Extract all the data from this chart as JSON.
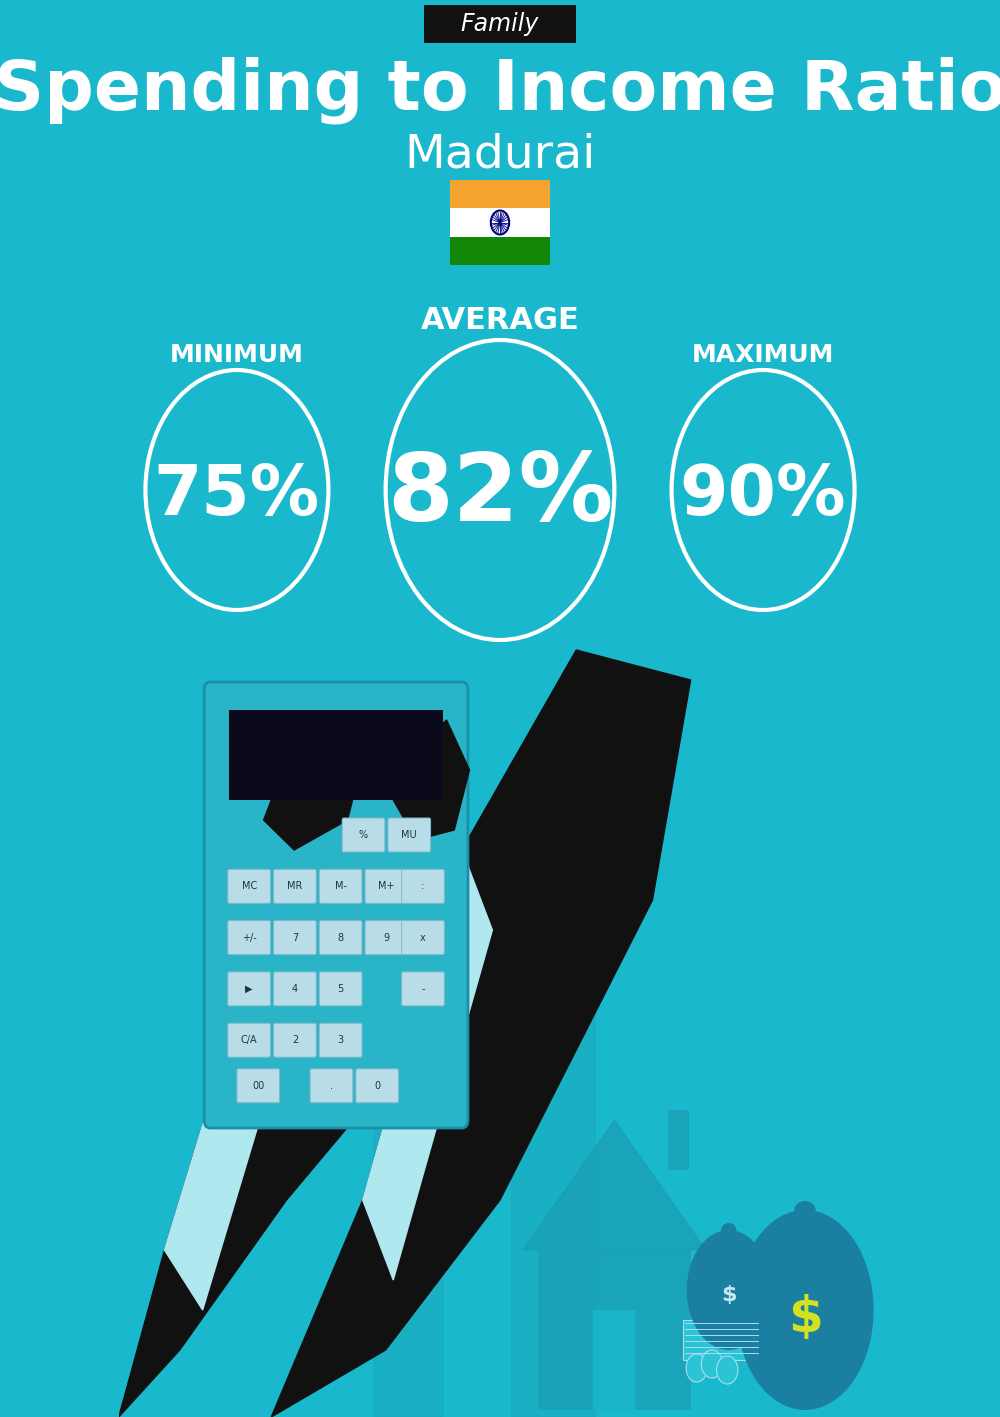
{
  "bg_color": "#1ab8cc",
  "header_bg": "#111111",
  "header_text": "Family",
  "header_text_color": "#ffffff",
  "title": "Spending to Income Ratio",
  "subtitle": "Madurai",
  "title_color": "#ffffff",
  "subtitle_color": "#ffffff",
  "avg_label": "AVERAGE",
  "min_label": "MINIMUM",
  "max_label": "MAXIMUM",
  "avg_value": "82%",
  "min_value": "75%",
  "max_value": "90%",
  "label_color": "#ffffff",
  "value_color": "#ffffff",
  "circle_edge_color": "#ffffff",
  "flag_saffron": "#f4a230",
  "flag_white": "#ffffff",
  "flag_green": "#138808",
  "flag_navy": "#000080",
  "arrow_color": "#18a5b8",
  "house_color": "#1a9eb5",
  "calc_color": "#2ab4c8",
  "hand_color": "#111111",
  "cuff_color": "#b0e8f0",
  "bag_color": "#1a7fa0",
  "dollar_color": "#d4e020"
}
